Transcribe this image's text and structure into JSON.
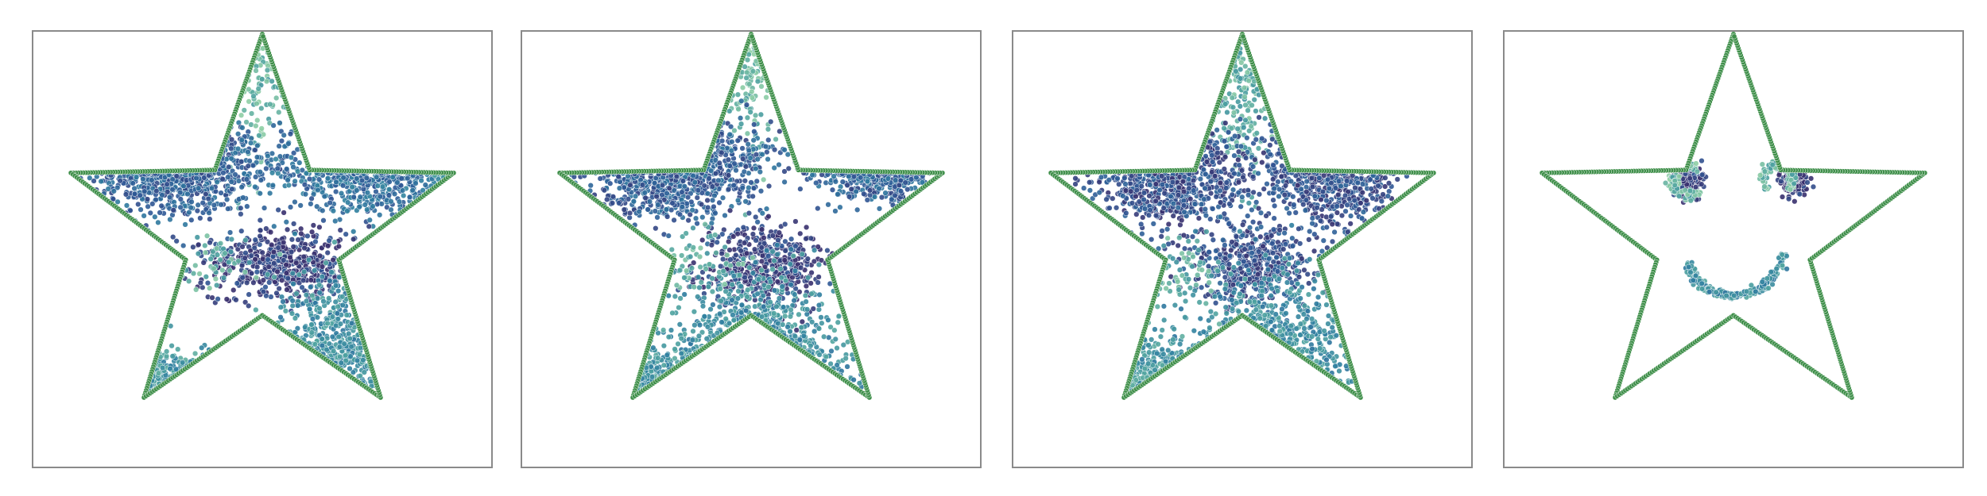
{
  "chart_data": [
    {
      "type": "scatter",
      "title": "",
      "xlabel": "",
      "ylabel": "",
      "grid": false,
      "axes_ticks": false,
      "boundary_color": "#3f8f4a",
      "colormap": [
        "#8fcfa5",
        "#4fa3a0",
        "#2f7fa0",
        "#2f5896",
        "#38306e"
      ],
      "series": [
        {
          "name": "",
          "shape": "star",
          "clusters": [
            {
              "x": 0.0,
              "y": 0.85,
              "sx": 0.06,
              "sy": 0.25,
              "n": 90,
              "density": 0.15
            },
            {
              "x": -0.45,
              "y": 0.35,
              "sx": 0.22,
              "sy": 0.12,
              "n": 620,
              "density": 0.7
            },
            {
              "x": 0.55,
              "y": 0.35,
              "sx": 0.22,
              "sy": 0.11,
              "n": 460,
              "density": 0.62
            },
            {
              "x": 0.1,
              "y": -0.15,
              "sx": 0.2,
              "sy": 0.09,
              "n": 520,
              "density": 0.92
            },
            {
              "x": 0.35,
              "y": -0.75,
              "sx": 0.16,
              "sy": 0.25,
              "n": 380,
              "density": 0.4
            },
            {
              "x": -0.5,
              "y": -0.8,
              "sx": 0.14,
              "sy": 0.1,
              "n": 170,
              "density": 0.35
            },
            {
              "x": -0.25,
              "y": -0.15,
              "sx": 0.1,
              "sy": 0.08,
              "n": 50,
              "density": 0.2
            },
            {
              "x": 0.95,
              "y": 0.25,
              "sx": 0.06,
              "sy": 0.04,
              "n": 10,
              "density": 0.25
            }
          ]
        },
        {
          "name": "",
          "shape": "star",
          "clusters": [
            {
              "x": 0.0,
              "y": 0.85,
              "sx": 0.06,
              "sy": 0.25,
              "n": 100,
              "density": 0.15
            },
            {
              "x": -0.4,
              "y": 0.35,
              "sx": 0.22,
              "sy": 0.13,
              "n": 650,
              "density": 0.72
            },
            {
              "x": 0.65,
              "y": 0.4,
              "sx": 0.15,
              "sy": 0.1,
              "n": 330,
              "density": 0.7
            },
            {
              "x": 0.05,
              "y": -0.15,
              "sx": 0.16,
              "sy": 0.1,
              "n": 450,
              "density": 0.92
            },
            {
              "x": 0.05,
              "y": -0.7,
              "sx": 0.2,
              "sy": 0.22,
              "n": 450,
              "density": 0.4
            },
            {
              "x": -0.45,
              "y": -0.85,
              "sx": 0.15,
              "sy": 0.12,
              "n": 190,
              "density": 0.35
            },
            {
              "x": -0.25,
              "y": -0.15,
              "sx": 0.12,
              "sy": 0.08,
              "n": 60,
              "density": 0.2
            }
          ]
        },
        {
          "name": "",
          "shape": "star",
          "clusters": [
            {
              "x": 0.0,
              "y": 0.75,
              "sx": 0.07,
              "sy": 0.22,
              "n": 160,
              "density": 0.2
            },
            {
              "x": -0.35,
              "y": 0.3,
              "sx": 0.2,
              "sy": 0.14,
              "n": 650,
              "density": 0.82
            },
            {
              "x": 0.45,
              "y": 0.3,
              "sx": 0.17,
              "sy": 0.12,
              "n": 450,
              "density": 0.82
            },
            {
              "x": 0.05,
              "y": -0.15,
              "sx": 0.16,
              "sy": 0.1,
              "n": 450,
              "density": 0.82
            },
            {
              "x": 0.2,
              "y": -0.6,
              "sx": 0.22,
              "sy": 0.22,
              "n": 380,
              "density": 0.4
            },
            {
              "x": -0.45,
              "y": -0.8,
              "sx": 0.15,
              "sy": 0.12,
              "n": 210,
              "density": 0.35
            },
            {
              "x": -0.3,
              "y": -0.2,
              "sx": 0.12,
              "sy": 0.08,
              "n": 60,
              "density": 0.2
            }
          ]
        },
        {
          "name": "",
          "shape": "star",
          "clusters": [
            {
              "kind": "blob",
              "x": -0.23,
              "y": 0.27,
              "s": 0.04,
              "n": 140,
              "density": 0.9
            },
            {
              "kind": "blob",
              "x": 0.3,
              "y": 0.27,
              "s": 0.035,
              "n": 120,
              "density": 0.95
            },
            {
              "kind": "arc",
              "x": -0.23,
              "y": 0.27,
              "r": 0.075,
              "a0": 40,
              "a1": 320,
              "n": 90,
              "density": 0.15
            },
            {
              "kind": "arc",
              "x": 0.22,
              "y": 0.27,
              "r": 0.075,
              "a0": -40,
              "a1": 220,
              "n": 90,
              "density": 0.15
            },
            {
              "kind": "arc",
              "x": 0.0,
              "y": -0.05,
              "r": 0.25,
              "a0": 200,
              "a1": 350,
              "n": 220,
              "density": 0.4
            }
          ]
        }
      ]
    }
  ]
}
